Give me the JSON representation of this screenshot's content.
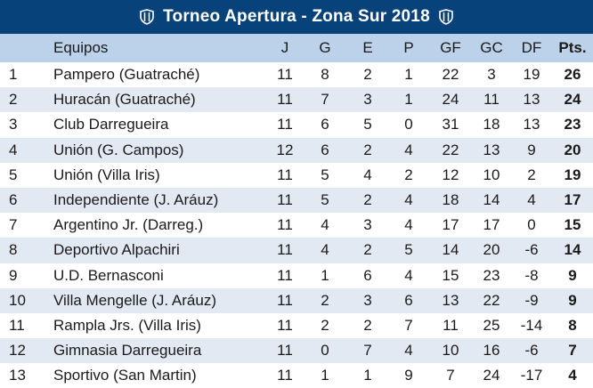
{
  "title": "Torneo Apertura - Zona Sur 2018",
  "colors": {
    "header_bg": "#07437a",
    "column_header_bg": "#bcd2ea",
    "stripe_bg": "#e3e9f2"
  },
  "icons": {
    "left": "club-shield-icon",
    "right": "club-shield-icon"
  },
  "columns": {
    "pos": "",
    "team": "Equipos",
    "j": "J",
    "g": "G",
    "e": "E",
    "p": "P",
    "gf": "GF",
    "gc": "GC",
    "df": "DF",
    "pts": "Pts."
  },
  "rows": [
    {
      "pos": "1",
      "team": "Pampero (Guatraché)",
      "j": "11",
      "g": "8",
      "e": "2",
      "p": "1",
      "gf": "22",
      "gc": "3",
      "df": "19",
      "pts": "26"
    },
    {
      "pos": "2",
      "team": "Huracán (Guatraché)",
      "j": "11",
      "g": "7",
      "e": "3",
      "p": "1",
      "gf": "24",
      "gc": "11",
      "df": "13",
      "pts": "24"
    },
    {
      "pos": "3",
      "team": "Club Darregueira",
      "j": "11",
      "g": "6",
      "e": "5",
      "p": "0",
      "gf": "31",
      "gc": "18",
      "df": "13",
      "pts": "23"
    },
    {
      "pos": "4",
      "team": "Unión (G. Campos)",
      "j": "12",
      "g": "6",
      "e": "2",
      "p": "4",
      "gf": "22",
      "gc": "13",
      "df": "9",
      "pts": "20"
    },
    {
      "pos": "5",
      "team": "Unión (Villa Iris)",
      "j": "11",
      "g": "5",
      "e": "4",
      "p": "2",
      "gf": "12",
      "gc": "10",
      "df": "2",
      "pts": "19"
    },
    {
      "pos": "6",
      "team": "Independiente (J. Aráuz)",
      "j": "11",
      "g": "5",
      "e": "2",
      "p": "4",
      "gf": "18",
      "gc": "14",
      "df": "4",
      "pts": "17"
    },
    {
      "pos": "7",
      "team": "Argentino Jr. (Darreg.)",
      "j": "11",
      "g": "4",
      "e": "3",
      "p": "4",
      "gf": "17",
      "gc": "17",
      "df": "0",
      "pts": "15"
    },
    {
      "pos": "8",
      "team": "Deportivo Alpachiri",
      "j": "11",
      "g": "4",
      "e": "2",
      "p": "5",
      "gf": "14",
      "gc": "20",
      "df": "-6",
      "pts": "14"
    },
    {
      "pos": "9",
      "team": "U.D. Bernasconi",
      "j": "11",
      "g": "1",
      "e": "6",
      "p": "4",
      "gf": "15",
      "gc": "23",
      "df": "-8",
      "pts": "9"
    },
    {
      "pos": "10",
      "team": "Villa Mengelle (J. Aráuz)",
      "j": "11",
      "g": "2",
      "e": "3",
      "p": "6",
      "gf": "13",
      "gc": "22",
      "df": "-9",
      "pts": "9"
    },
    {
      "pos": "11",
      "team": "Rampla Jrs. (Villa Iris)",
      "j": "11",
      "g": "2",
      "e": "2",
      "p": "7",
      "gf": "11",
      "gc": "25",
      "df": "-14",
      "pts": "8"
    },
    {
      "pos": "12",
      "team": "Gimnasia Darregueira",
      "j": "11",
      "g": "0",
      "e": "7",
      "p": "4",
      "gf": "10",
      "gc": "16",
      "df": "-6",
      "pts": "7"
    },
    {
      "pos": "13",
      "team": "Sportivo (San Martin)",
      "j": "11",
      "g": "1",
      "e": "1",
      "p": "9",
      "gf": "7",
      "gc": "24",
      "df": "-17",
      "pts": "4"
    }
  ]
}
